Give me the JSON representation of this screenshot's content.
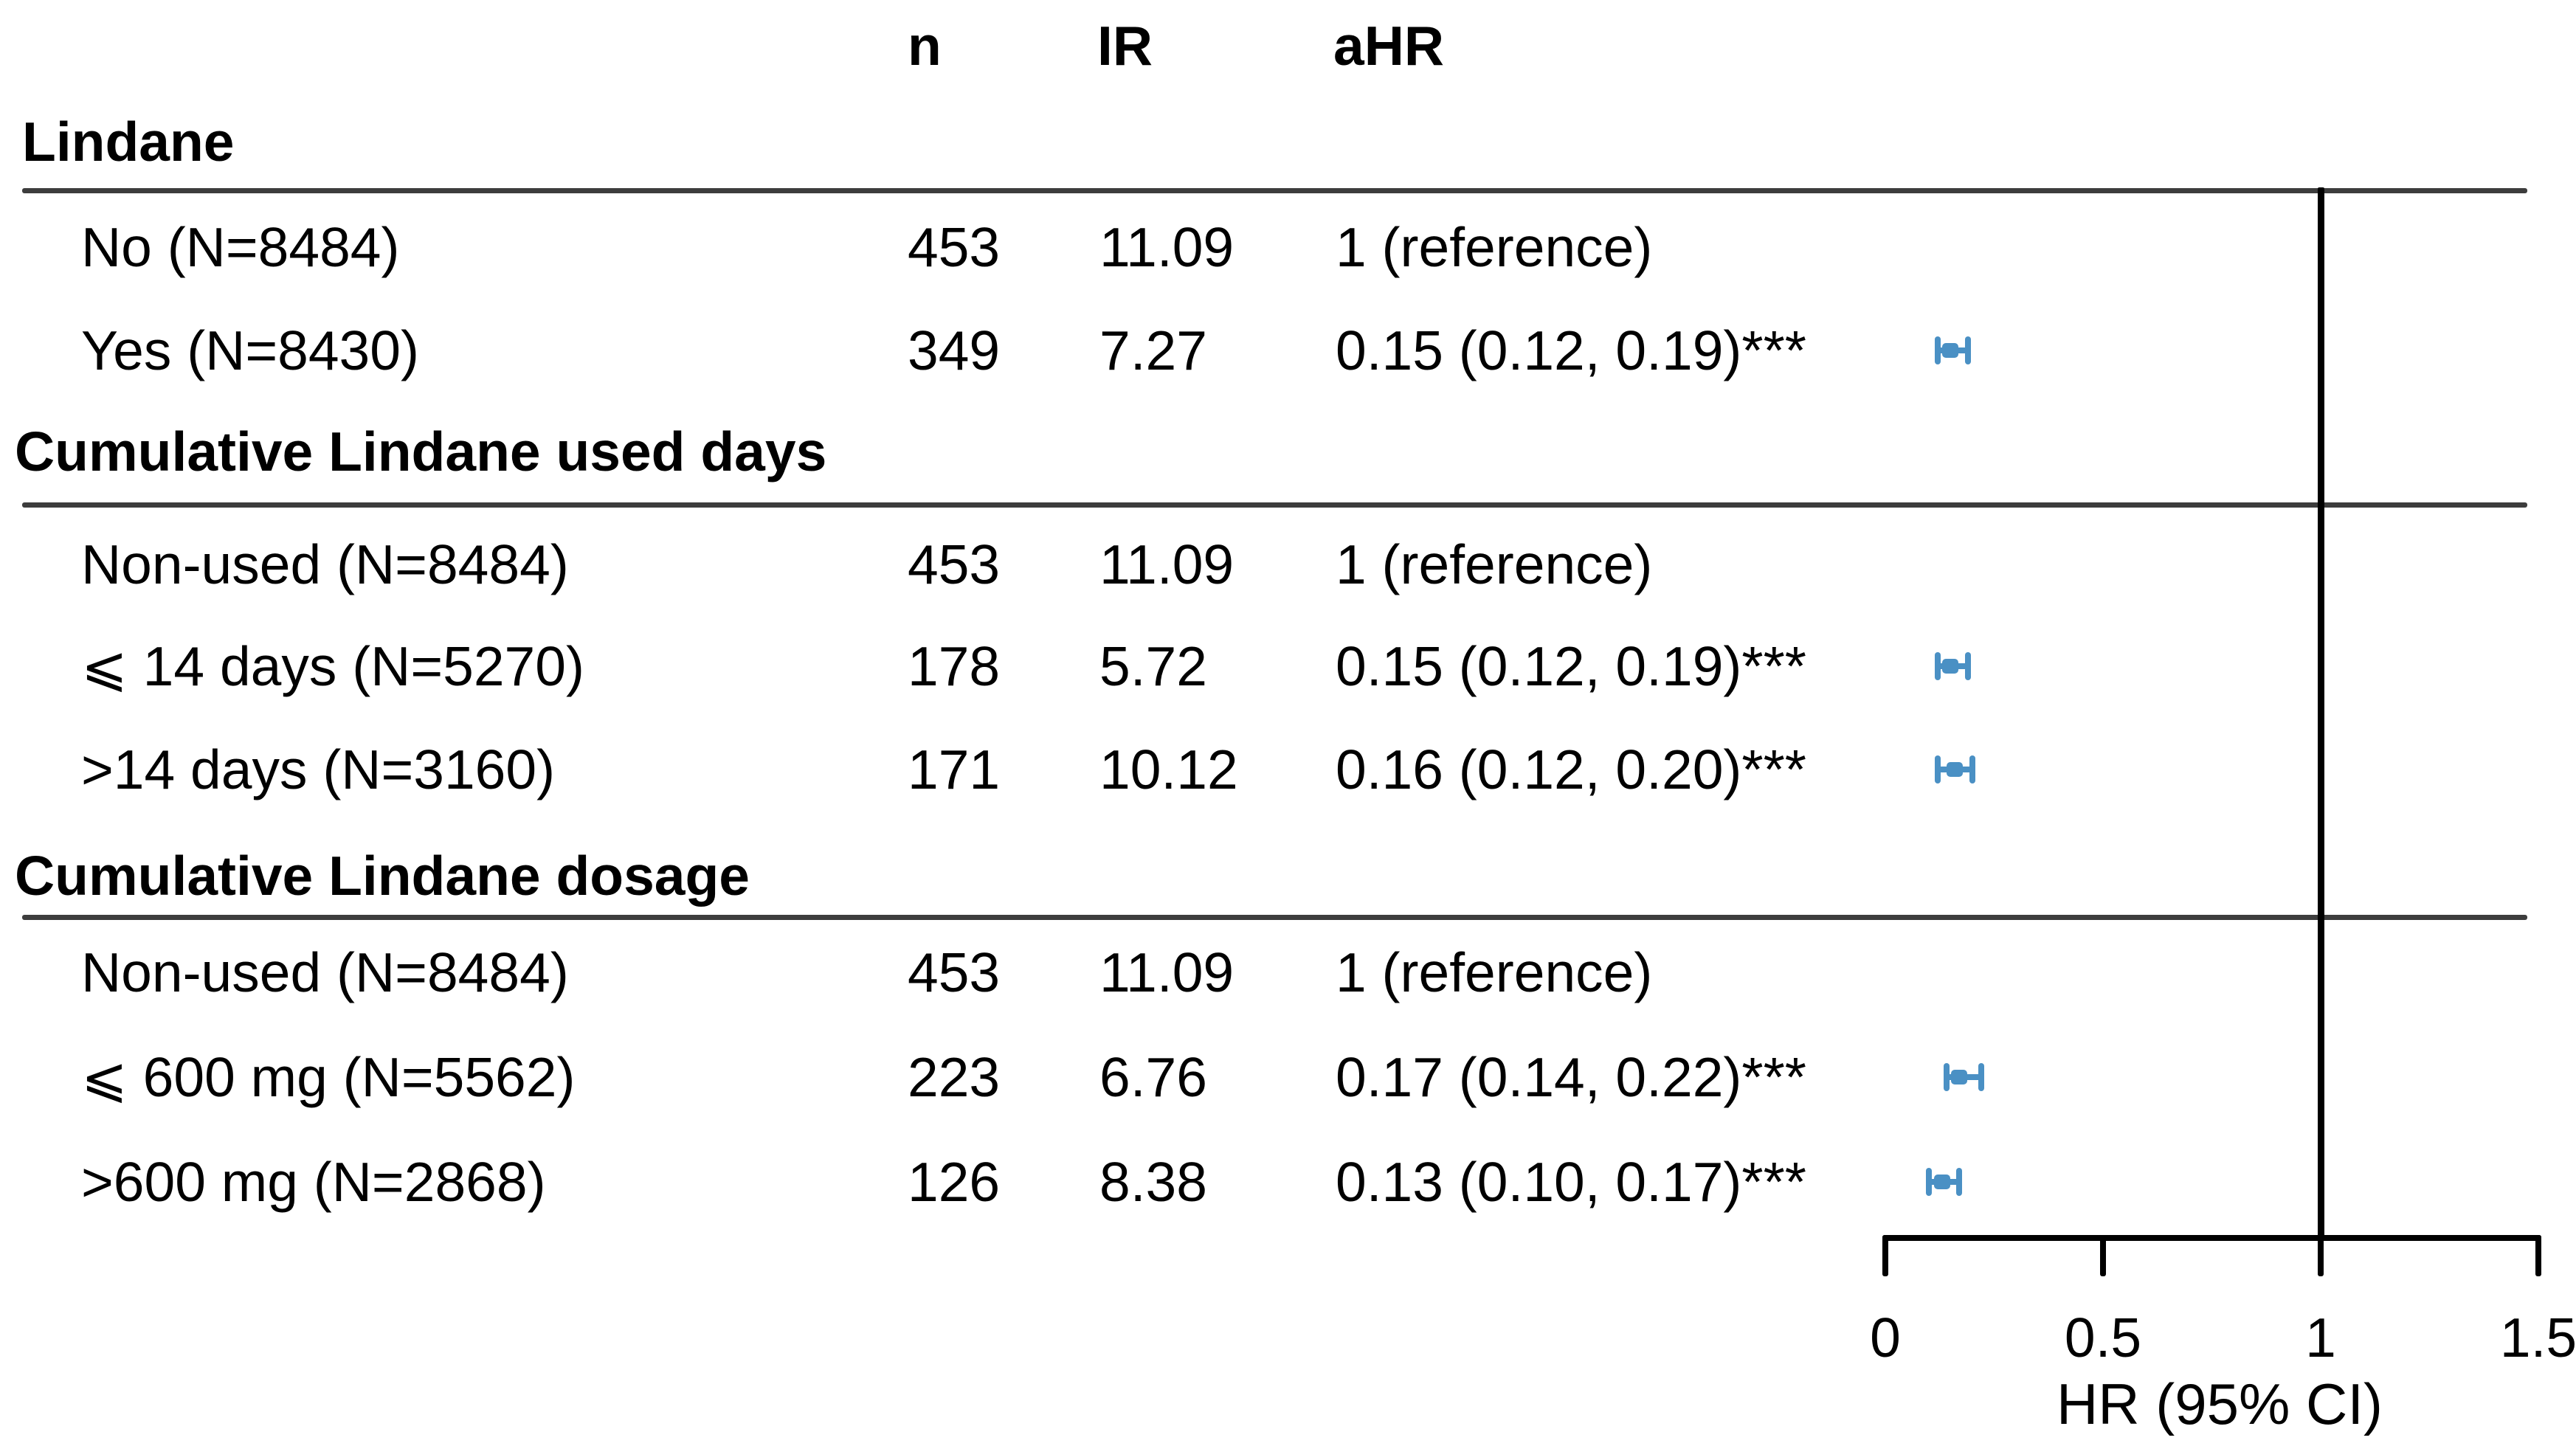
{
  "chart_data": {
    "type": "scatter",
    "subtype": "forest-plot",
    "title": "",
    "xlabel": "HR (95% CI)",
    "xlim": [
      0,
      1.5
    ],
    "grid": false,
    "legend": null,
    "marker_color": "#4a90c4",
    "reference_line_x": 1,
    "xticks": [
      {
        "value": 0,
        "label": "0"
      },
      {
        "value": 0.5,
        "label": "0.5"
      },
      {
        "value": 1,
        "label": "1"
      },
      {
        "value": 1.5,
        "label": "1.5"
      }
    ],
    "columns": [
      "n",
      "IR",
      "aHR"
    ],
    "groups": [
      {
        "title": "Lindane",
        "rows": [
          {
            "label": "No (N=8484)",
            "n": "453",
            "ir": "11.09",
            "ahr": "1 (reference)",
            "hr": 1,
            "ci": null
          },
          {
            "label": "Yes (N=8430)",
            "n": "349",
            "ir": "7.27",
            "ahr": "0.15 (0.12, 0.19)***",
            "hr": 0.15,
            "ci": [
              0.12,
              0.19
            ]
          }
        ]
      },
      {
        "title": "Cumulative Lindane used days",
        "rows": [
          {
            "label": "Non-used (N=8484)",
            "n": "453",
            "ir": "11.09",
            "ahr": "1 (reference)",
            "hr": 1,
            "ci": null
          },
          {
            "label": "⩽ 14 days (N=5270)",
            "n": "178",
            "ir": "5.72",
            "ahr": "0.15 (0.12, 0.19)***",
            "hr": 0.15,
            "ci": [
              0.12,
              0.19
            ]
          },
          {
            "label": ">14 days (N=3160)",
            "n": "171",
            "ir": "10.12",
            "ahr": "0.16 (0.12, 0.20)***",
            "hr": 0.16,
            "ci": [
              0.12,
              0.2
            ]
          }
        ]
      },
      {
        "title": "Cumulative Lindane dosage",
        "rows": [
          {
            "label": "Non-used (N=8484)",
            "n": "453",
            "ir": "11.09",
            "ahr": "1 (reference)",
            "hr": 1,
            "ci": null
          },
          {
            "label": "⩽ 600 mg (N=5562)",
            "n": "223",
            "ir": "6.76",
            "ahr": "0.17 (0.14, 0.22)***",
            "hr": 0.17,
            "ci": [
              0.14,
              0.22
            ]
          },
          {
            "label": ">600 mg (N=2868)",
            "n": "126",
            "ir": "8.38",
            "ahr": "0.13 (0.10, 0.17)***",
            "hr": 0.13,
            "ci": [
              0.1,
              0.17
            ]
          }
        ]
      }
    ]
  }
}
